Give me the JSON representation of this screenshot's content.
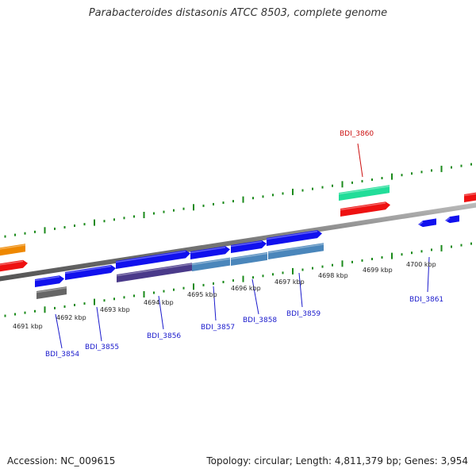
{
  "title": "Parabacteroides distasonis ATCC 8503, complete genome",
  "footer": {
    "accession": "Accession: NC_009615",
    "stats": "Topology: circular; Length: 4,811,379 bp; Genes: 3,954"
  },
  "colors": {
    "backbone": "#888888",
    "tick": "#1a8a1a",
    "label_blue": "#1a1acc",
    "label_red": "#cc1111",
    "gene_blue": "#1111ee",
    "gene_red": "#ee1111",
    "gene_orange": "#ee8800",
    "gene_teal": "#22dd99",
    "gene_gray": "#666666",
    "gene_purple": "#4a3a8a",
    "gene_steel": "#4a86bb"
  },
  "kbp_labels": [
    "4691 kbp",
    "4692 kbp",
    "4693 kbp",
    "4694 kbp",
    "4695 kbp",
    "4696 kbp",
    "4697 kbp",
    "4698 kbp",
    "4699 kbp",
    "4700 kbp"
  ],
  "gene_labels": [
    {
      "id": "BDI_3854",
      "color": "label_blue"
    },
    {
      "id": "BDI_3855",
      "color": "label_blue"
    },
    {
      "id": "BDI_3856",
      "color": "label_blue"
    },
    {
      "id": "BDI_3857",
      "color": "label_blue"
    },
    {
      "id": "BDI_3858",
      "color": "label_blue"
    },
    {
      "id": "BDI_3859",
      "color": "label_blue"
    },
    {
      "id": "BDI_3860",
      "color": "label_red"
    },
    {
      "id": "BDI_3861",
      "color": "label_blue"
    }
  ]
}
